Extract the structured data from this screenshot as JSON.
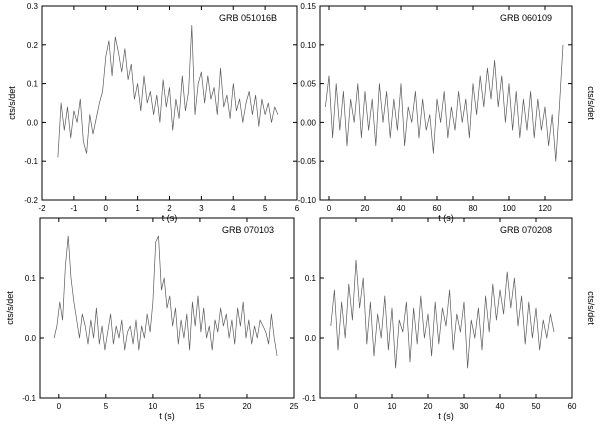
{
  "chart_data": [
    {
      "type": "line",
      "title": "GRB 051016B",
      "xlabel": "t (s)",
      "ylabel": "cts/s/det",
      "xlim": [
        -2,
        6
      ],
      "ylim": [
        -0.2,
        0.3
      ],
      "xticks": [
        -2,
        -1,
        0,
        1,
        2,
        3,
        4,
        5,
        6
      ],
      "yticks": [
        -0.2,
        -0.1,
        0.0,
        0.1,
        0.2,
        0.3
      ],
      "ytick_labels": [
        "-0.2",
        "-0.1",
        "0.0",
        "0.1",
        "0.2",
        "0.3"
      ],
      "ylabel_side": "left",
      "grid": false,
      "series": [
        {
          "x": [
            -1.5,
            -1.4,
            -1.3,
            -1.2,
            -1.1,
            -1.0,
            -0.9,
            -0.8,
            -0.7,
            -0.6,
            -0.5,
            -0.4,
            -0.3,
            -0.2,
            -0.1,
            0.0,
            0.1,
            0.2,
            0.3,
            0.4,
            0.5,
            0.6,
            0.7,
            0.8,
            0.9,
            1.0,
            1.1,
            1.2,
            1.3,
            1.4,
            1.5,
            1.6,
            1.7,
            1.8,
            1.9,
            2.0,
            2.1,
            2.2,
            2.3,
            2.4,
            2.5,
            2.6,
            2.7,
            2.8,
            2.9,
            3.0,
            3.1,
            3.2,
            3.3,
            3.4,
            3.5,
            3.6,
            3.7,
            3.8,
            3.9,
            4.0,
            4.1,
            4.2,
            4.3,
            4.4,
            4.5,
            4.6,
            4.7,
            4.8,
            4.9,
            5.0,
            5.1,
            5.2,
            5.3,
            5.4
          ],
          "y": [
            -0.09,
            0.05,
            -0.02,
            0.04,
            -0.04,
            0.03,
            0.0,
            0.06,
            -0.05,
            -0.08,
            0.02,
            -0.03,
            0.01,
            0.05,
            0.08,
            0.17,
            0.21,
            0.12,
            0.22,
            0.18,
            0.13,
            0.19,
            0.11,
            0.15,
            0.06,
            0.1,
            0.03,
            0.12,
            0.05,
            0.08,
            0.02,
            0.07,
            0.0,
            0.11,
            0.04,
            0.09,
            -0.02,
            0.06,
            0.01,
            0.12,
            0.03,
            0.08,
            0.25,
            0.02,
            0.1,
            0.13,
            0.05,
            0.12,
            0.06,
            0.09,
            0.02,
            0.14,
            0.04,
            0.07,
            0.01,
            0.1,
            0.03,
            0.06,
            0.0,
            0.05,
            0.08,
            0.02,
            0.07,
            -0.01,
            0.06,
            0.02,
            0.05,
            0.0,
            0.04,
            0.02
          ]
        }
      ]
    },
    {
      "type": "line",
      "title": "GRB 060109",
      "xlabel": "t (s)",
      "ylabel": "cts/s/det",
      "xlim": [
        -5,
        135
      ],
      "ylim": [
        -0.1,
        0.15
      ],
      "xticks": [
        0,
        20,
        40,
        60,
        80,
        100,
        120
      ],
      "yticks": [
        -0.1,
        -0.05,
        0.0,
        0.05,
        0.1,
        0.15
      ],
      "ytick_labels": [
        "-0.10",
        "-0.05",
        "0.00",
        "0.05",
        "0.10",
        "0.15"
      ],
      "ylabel_side": "right",
      "grid": false,
      "series": [
        {
          "x": [
            -2,
            0,
            2,
            4,
            6,
            8,
            10,
            12,
            14,
            16,
            18,
            20,
            22,
            24,
            26,
            28,
            30,
            32,
            34,
            36,
            38,
            40,
            42,
            44,
            46,
            48,
            50,
            52,
            54,
            56,
            58,
            60,
            62,
            64,
            66,
            68,
            70,
            72,
            74,
            76,
            78,
            80,
            82,
            84,
            86,
            88,
            90,
            92,
            94,
            96,
            98,
            100,
            102,
            104,
            106,
            108,
            110,
            112,
            114,
            116,
            118,
            120,
            122,
            124,
            126,
            128,
            130
          ],
          "y": [
            0.02,
            0.06,
            -0.02,
            0.05,
            -0.01,
            0.04,
            -0.03,
            0.03,
            0.0,
            0.05,
            -0.02,
            0.04,
            -0.01,
            0.03,
            -0.03,
            0.05,
            0.0,
            0.04,
            -0.02,
            0.03,
            -0.01,
            0.05,
            -0.03,
            0.02,
            0.0,
            0.04,
            -0.02,
            0.03,
            -0.01,
            0.01,
            -0.04,
            0.03,
            0.0,
            0.04,
            -0.02,
            0.02,
            -0.01,
            0.04,
            0.0,
            0.03,
            -0.02,
            0.05,
            0.01,
            0.06,
            0.02,
            0.07,
            0.03,
            0.08,
            0.02,
            0.06,
            0.0,
            0.05,
            -0.01,
            0.04,
            -0.02,
            0.03,
            -0.01,
            0.04,
            -0.02,
            0.03,
            -0.01,
            0.02,
            -0.03,
            0.01,
            -0.05,
            0.02,
            0.1
          ]
        }
      ]
    },
    {
      "type": "line",
      "title": "GRB 070103",
      "xlabel": "t (s)",
      "ylabel": "cts/s/det",
      "xlim": [
        -2,
        25
      ],
      "ylim": [
        -0.1,
        0.2
      ],
      "xticks": [
        0,
        5,
        10,
        15,
        20,
        25
      ],
      "yticks": [
        -0.1,
        0.0,
        0.1
      ],
      "ytick_labels": [
        "-0.1",
        "0.0",
        "0.1"
      ],
      "ylabel_side": "left",
      "grid": false,
      "series": [
        {
          "x": [
            -0.5,
            -0.2,
            0.1,
            0.4,
            0.7,
            1.0,
            1.3,
            1.6,
            1.9,
            2.2,
            2.5,
            2.8,
            3.1,
            3.4,
            3.7,
            4.0,
            4.3,
            4.6,
            4.9,
            5.2,
            5.5,
            5.8,
            6.1,
            6.4,
            6.7,
            7.0,
            7.3,
            7.6,
            7.9,
            8.2,
            8.5,
            8.8,
            9.1,
            9.4,
            9.7,
            10.0,
            10.3,
            10.6,
            10.9,
            11.2,
            11.5,
            11.8,
            12.1,
            12.4,
            12.7,
            13.0,
            13.3,
            13.6,
            13.9,
            14.2,
            14.5,
            14.8,
            15.1,
            15.4,
            15.7,
            16.0,
            16.3,
            16.6,
            16.9,
            17.2,
            17.5,
            17.8,
            18.1,
            18.4,
            18.7,
            19.0,
            19.3,
            19.6,
            19.9,
            20.2,
            20.5,
            20.8,
            21.1,
            21.4,
            21.7,
            22.0,
            22.3,
            22.6,
            22.9,
            23.2
          ],
          "y": [
            0.0,
            0.02,
            0.06,
            0.03,
            0.12,
            0.17,
            0.1,
            0.06,
            0.03,
            0.0,
            0.04,
            0.02,
            -0.01,
            0.03,
            0.0,
            0.05,
            -0.01,
            0.02,
            -0.02,
            0.01,
            0.04,
            -0.01,
            0.02,
            0.0,
            0.03,
            -0.02,
            0.01,
            0.02,
            -0.01,
            0.03,
            -0.02,
            0.02,
            0.0,
            0.04,
            0.01,
            0.06,
            0.16,
            0.17,
            0.08,
            0.1,
            0.05,
            0.07,
            0.02,
            0.05,
            -0.01,
            0.03,
            0.0,
            0.04,
            -0.02,
            0.06,
            0.02,
            0.07,
            0.01,
            0.05,
            0.0,
            0.02,
            -0.02,
            0.03,
            0.01,
            0.05,
            0.02,
            0.04,
            0.0,
            0.03,
            -0.01,
            0.05,
            0.02,
            0.06,
            0.0,
            0.03,
            -0.01,
            0.02,
            0.0,
            0.03,
            0.02,
            0.01,
            -0.01,
            0.04,
            0.0,
            -0.03
          ]
        }
      ]
    },
    {
      "type": "line",
      "title": "GRB 070208",
      "xlabel": "t (s)",
      "ylabel": "cts/s/det",
      "xlim": [
        -10,
        60
      ],
      "ylim": [
        -0.1,
        0.2
      ],
      "xticks": [
        0,
        10,
        20,
        30,
        40,
        50,
        60
      ],
      "yticks": [
        -0.1,
        0.0,
        0.1
      ],
      "ytick_labels": [
        "-0.1",
        "0.0",
        "0.1"
      ],
      "ylabel_side": "right",
      "grid": false,
      "series": [
        {
          "x": [
            -7,
            -6,
            -5,
            -4,
            -3,
            -2,
            -1,
            0,
            1,
            2,
            3,
            4,
            5,
            6,
            7,
            8,
            9,
            10,
            11,
            12,
            13,
            14,
            15,
            16,
            17,
            18,
            19,
            20,
            21,
            22,
            23,
            24,
            25,
            26,
            27,
            28,
            29,
            30,
            31,
            32,
            33,
            34,
            35,
            36,
            37,
            38,
            39,
            40,
            41,
            42,
            43,
            44,
            45,
            46,
            47,
            48,
            49,
            50,
            51,
            52,
            53,
            54,
            55
          ],
          "y": [
            0.02,
            0.08,
            -0.02,
            0.06,
            0.0,
            0.09,
            0.03,
            0.13,
            0.05,
            0.1,
            -0.01,
            0.06,
            -0.03,
            0.04,
            0.0,
            0.07,
            -0.02,
            0.05,
            -0.05,
            0.03,
            0.01,
            0.06,
            -0.04,
            0.05,
            -0.01,
            0.07,
            0.0,
            0.04,
            -0.03,
            0.06,
            -0.01,
            0.05,
            0.02,
            0.08,
            -0.02,
            0.04,
            0.01,
            0.06,
            -0.05,
            0.03,
            0.0,
            0.05,
            -0.02,
            0.07,
            0.01,
            0.09,
            0.03,
            0.08,
            0.04,
            0.11,
            0.05,
            0.1,
            0.02,
            0.07,
            -0.01,
            0.06,
            0.0,
            0.05,
            -0.02,
            0.03,
            0.0,
            0.04,
            0.01
          ]
        }
      ]
    }
  ]
}
